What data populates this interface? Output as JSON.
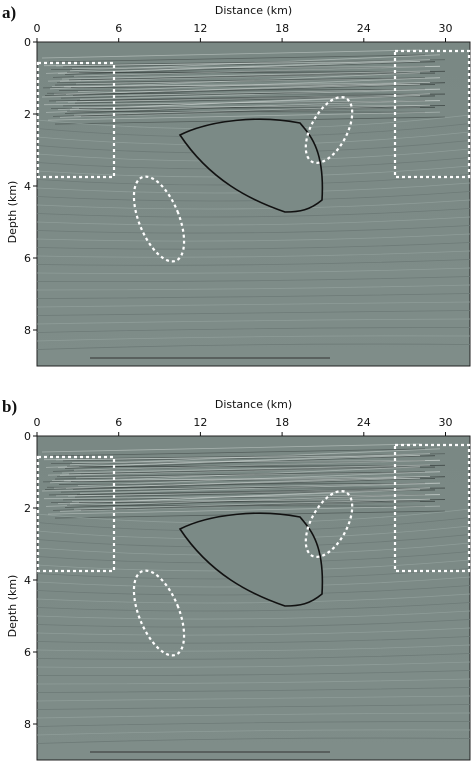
{
  "panels": [
    {
      "label": "a)",
      "x_label": "Distance (km)",
      "y_label": "Depth (km)",
      "xlim": [
        0,
        31.8
      ],
      "ylim": [
        0,
        9
      ],
      "xticks": [
        0,
        6,
        12,
        18,
        24,
        30
      ],
      "yticks": [
        0,
        2,
        4,
        6,
        8
      ]
    },
    {
      "label": "b)",
      "x_label": "Distance (km)",
      "y_label": "Depth (km)",
      "xlim": [
        0,
        31.8
      ],
      "ylim": [
        0,
        9
      ],
      "xticks": [
        0,
        6,
        12,
        18,
        24,
        30
      ],
      "yticks": [
        0,
        2,
        4,
        6,
        8
      ]
    }
  ]
}
